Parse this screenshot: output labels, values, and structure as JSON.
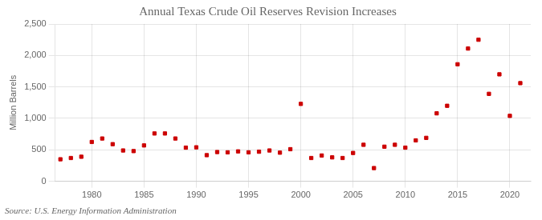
{
  "chart_data": {
    "type": "scatter",
    "title": "Annual Texas Crude Oil Reserves Revision Increases",
    "ylabel": "Million Barrels",
    "annotations": [
      "Source: U.S. Energy Information Administration"
    ],
    "x": [
      1977,
      1978,
      1979,
      1980,
      1981,
      1982,
      1983,
      1984,
      1985,
      1986,
      1987,
      1988,
      1989,
      1990,
      1991,
      1992,
      1993,
      1994,
      1995,
      1996,
      1997,
      1998,
      1999,
      2000,
      2001,
      2002,
      2003,
      2004,
      2005,
      2006,
      2007,
      2008,
      2009,
      2010,
      2011,
      2012,
      2013,
      2014,
      2015,
      2016,
      2017,
      2018,
      2019,
      2020,
      2021
    ],
    "values": [
      350,
      370,
      390,
      625,
      680,
      590,
      490,
      480,
      570,
      760,
      760,
      680,
      535,
      540,
      415,
      465,
      460,
      475,
      460,
      470,
      490,
      455,
      510,
      1230,
      370,
      410,
      380,
      370,
      450,
      580,
      210,
      550,
      580,
      535,
      650,
      690,
      1080,
      1200,
      1860,
      2110,
      2250,
      1390,
      1700,
      1040,
      1560
    ],
    "color": "#cc0000",
    "marker": "square",
    "xlim": [
      1976.5,
      2022
    ],
    "ylim": [
      0,
      2500
    ],
    "xticks": [
      1980,
      1985,
      1990,
      1995,
      2000,
      2005,
      2010,
      2015,
      2020
    ],
    "yticks": [
      0,
      500,
      {
        "value": 1000,
        "label": "1,000"
      },
      {
        "value": 1500,
        "label": "1,500"
      },
      {
        "value": 2000,
        "label": "2,000"
      },
      {
        "value": 2500,
        "label": "2,500"
      }
    ],
    "grid": true
  }
}
